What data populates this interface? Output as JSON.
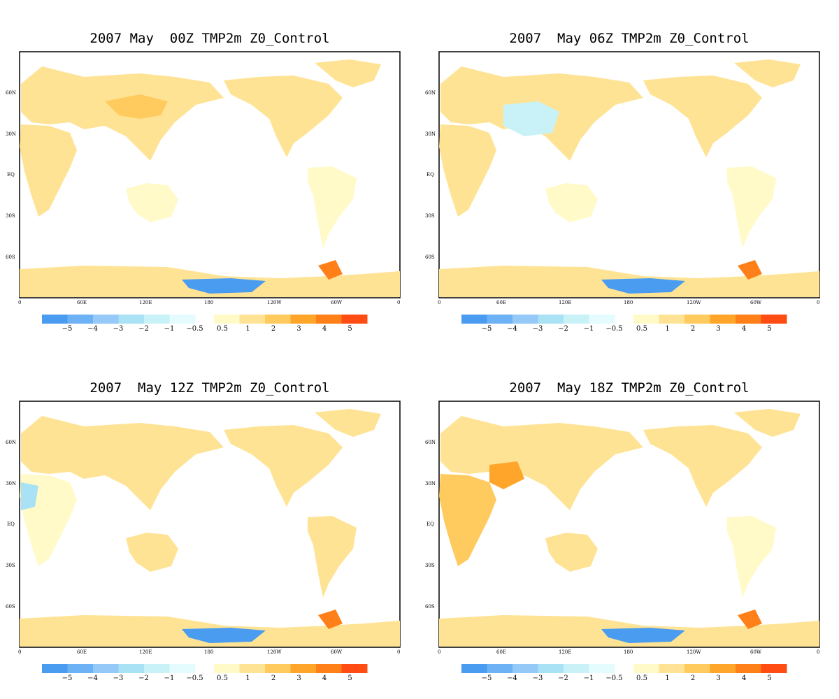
{
  "panels": [
    {
      "title": "2007 May  00Z TMP2m Z0_Control"
    },
    {
      "title": "2007  May 06Z TMP2m Z0_Control"
    },
    {
      "title": "2007  May 12Z TMP2m Z0_Control"
    },
    {
      "title": "2007  May 18Z TMP2m Z0_Control"
    }
  ],
  "map_axes": {
    "y_ticks": [
      "60N",
      "30N",
      "EQ",
      "30S",
      "60S"
    ],
    "x_ticks": [
      "0",
      "60E",
      "120E",
      "180",
      "120W",
      "60W",
      "0"
    ]
  },
  "colorbar": {
    "neg_colors": [
      "#4a9cf0",
      "#6cb2f5",
      "#95c9f8",
      "#a8e2f4",
      "#c8f2f8",
      "#e4fcfe"
    ],
    "pos_colors": [
      "#fffac8",
      "#ffe394",
      "#ffca5e",
      "#ffa62a",
      "#ff7f18",
      "#ff4c12"
    ],
    "neg_labels": [
      "−5",
      "−4",
      "−3",
      "−2",
      "−1",
      "−0.5"
    ],
    "pos_labels": [
      "0.5",
      "1",
      "2",
      "3",
      "4",
      "5"
    ]
  }
}
